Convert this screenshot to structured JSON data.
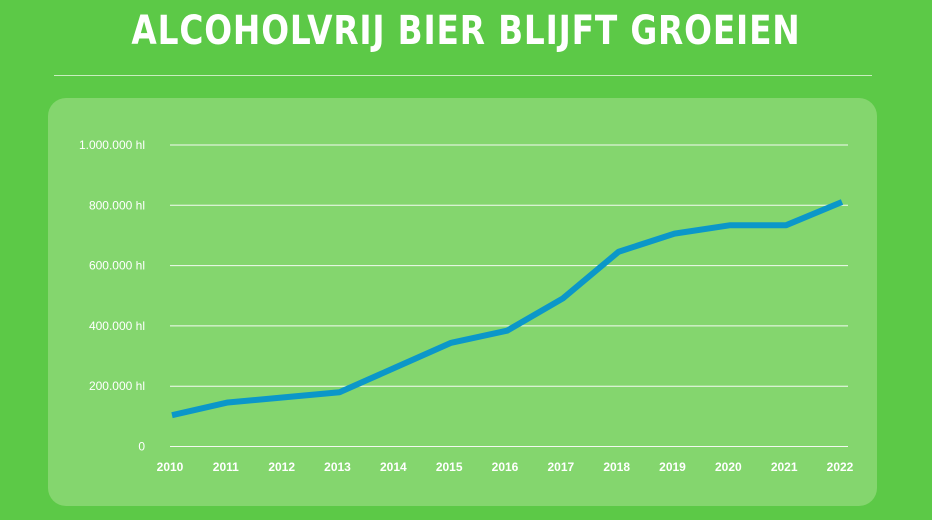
{
  "title": "ALCOHOLVRIJ BIER BLIJFT GROEIEN",
  "chart_data": {
    "type": "line",
    "title": "ALCOHOLVRIJ BIER BLIJFT GROEIEN",
    "x": [
      "2010",
      "2011",
      "2012",
      "2013",
      "2014",
      "2015",
      "2016",
      "2017",
      "2018",
      "2019",
      "2020",
      "2021",
      "2022"
    ],
    "series": [
      {
        "values": [
          104000,
          146000,
          163000,
          180000,
          262000,
          344000,
          384000,
          491000,
          646000,
          706000,
          734000,
          734000,
          811000
        ]
      }
    ],
    "yticks": [
      0,
      200000,
      400000,
      600000,
      800000,
      1000000
    ],
    "ytick_labels": [
      "0",
      "200.000 hl",
      "400.000 hl",
      "600.000 hl",
      "800.000 hl",
      "1.000.000 hl"
    ],
    "ylim": [
      0,
      1000000
    ],
    "grid": true,
    "colors": {
      "line": "#0b97c9",
      "background": "#5cc947",
      "panel": "#84d66e",
      "grid": "#ffffff"
    }
  }
}
